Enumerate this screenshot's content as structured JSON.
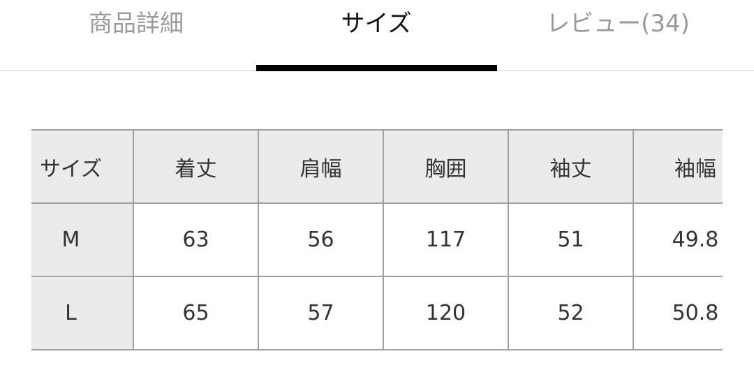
{
  "tabs": [
    {
      "label": "商品詳細",
      "active": false
    },
    {
      "label": "サイズ",
      "active": true
    },
    {
      "label": "レビュー(34)",
      "active": false
    }
  ],
  "size_table": {
    "headers": [
      "サイズ",
      "着丈",
      "肩幅",
      "胸囲",
      "袖丈",
      "袖幅"
    ],
    "rows": [
      [
        "M",
        "63",
        "56",
        "117",
        "51",
        "49.8"
      ],
      [
        "L",
        "65",
        "57",
        "120",
        "52",
        "50.8"
      ]
    ]
  }
}
